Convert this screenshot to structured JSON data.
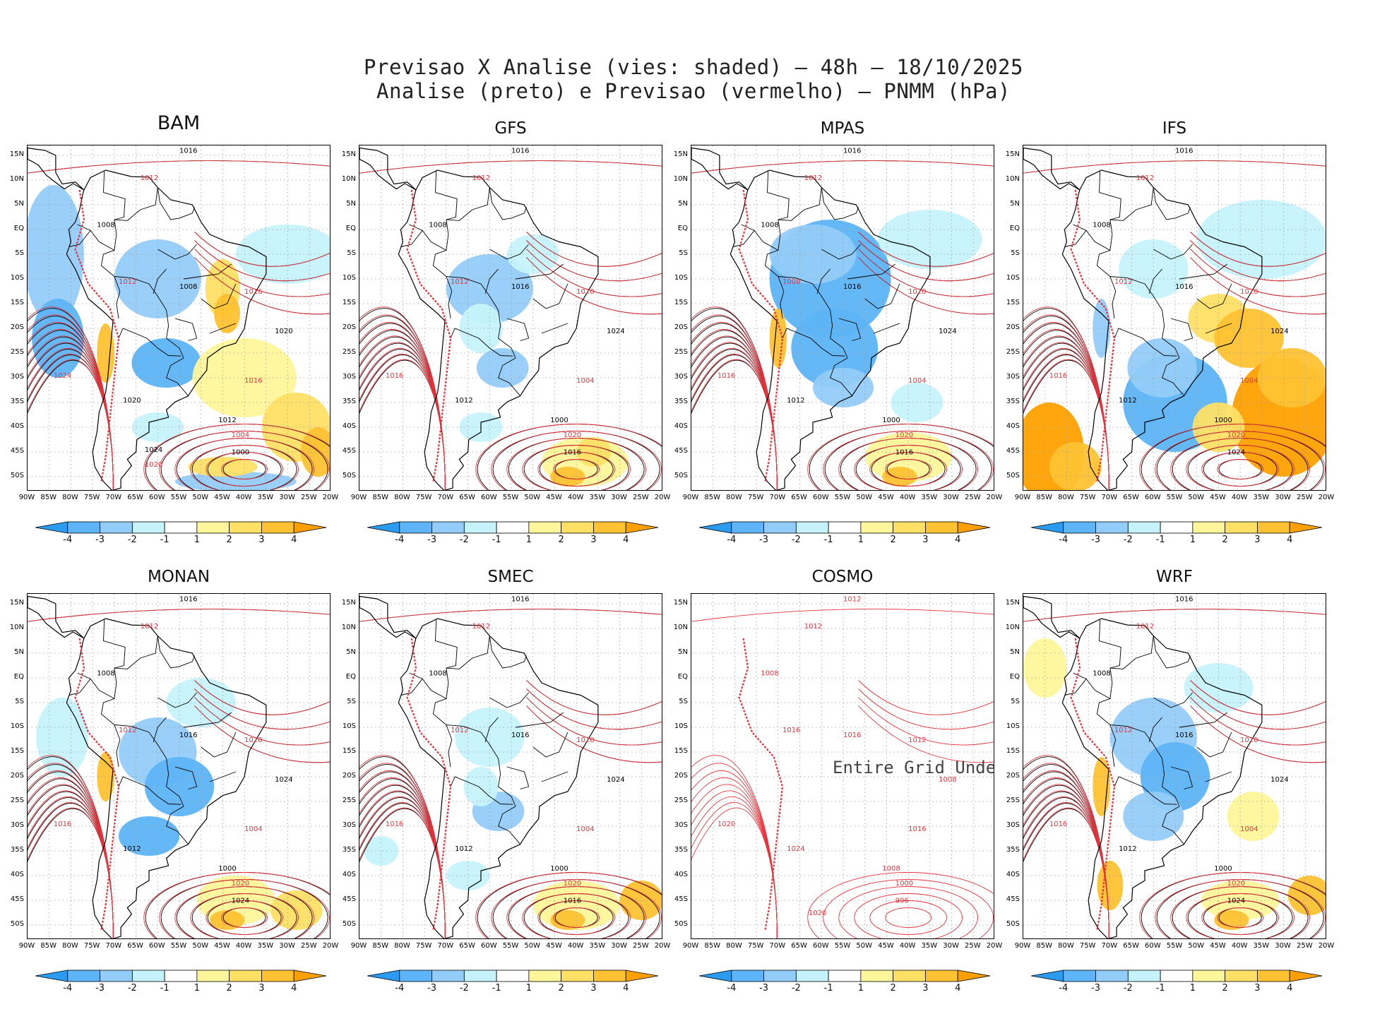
{
  "title": {
    "line1": "Previsao X Analise (vies: shaded) – 48h – 18/10/2025",
    "line2": "Analise (preto) e Previsao (vermelho) – PNMM (hPa)"
  },
  "axes": {
    "lat_labels": [
      "15N",
      "10N",
      "5N",
      "EQ",
      "5S",
      "10S",
      "15S",
      "20S",
      "25S",
      "30S",
      "35S",
      "40S",
      "45S",
      "50S"
    ],
    "lon_labels": [
      "90W",
      "85W",
      "80W",
      "75W",
      "70W",
      "65W",
      "60W",
      "55W",
      "50W",
      "45W",
      "40W",
      "35W",
      "30W",
      "25W",
      "20W"
    ]
  },
  "colorbar": {
    "labels": [
      "-4",
      "-3",
      "-2",
      "-1",
      "1",
      "2",
      "3",
      "4"
    ],
    "colors": [
      "#2b9bf0",
      "#5db4f6",
      "#93ccf8",
      "#c6f3fb",
      "#ffffff",
      "#fff59b",
      "#ffe066",
      "#ffc233",
      "#ffa000"
    ]
  },
  "colors": {
    "analysis_contour": "#000000",
    "forecast_contour": "#e8323c",
    "grid": "#9a9a9a"
  },
  "panels": [
    {
      "name": "BAM",
      "bias": "mixed",
      "labels": [
        "1016",
        "1012",
        "1008",
        "1012",
        "1008",
        "1016",
        "1020",
        "1024",
        "1020",
        "1016",
        "1012",
        "1004",
        "1000",
        "1020",
        "1024"
      ],
      "undefined_text": ""
    },
    {
      "name": "GFS",
      "bias": "weak",
      "labels": [
        "1016",
        "1012",
        "1008",
        "1012",
        "1016",
        "1020",
        "1024",
        "1016",
        "1012",
        "1004",
        "1000",
        "1020",
        "1016"
      ],
      "undefined_text": ""
    },
    {
      "name": "MPAS",
      "bias": "negative",
      "labels": [
        "1016",
        "1012",
        "1008",
        "1008",
        "1016",
        "1020",
        "1024",
        "1016",
        "1012",
        "1004",
        "1000",
        "1020",
        "1016"
      ],
      "undefined_text": ""
    },
    {
      "name": "IFS",
      "bias": "strong",
      "labels": [
        "1016",
        "1012",
        "1008",
        "1012",
        "1016",
        "1020",
        "1024",
        "1016",
        "1012",
        "1004",
        "1000",
        "1020",
        "1024"
      ],
      "undefined_text": ""
    },
    {
      "name": "MONAN",
      "bias": "mixed",
      "labels": [
        "1016",
        "1012",
        "1008",
        "1012",
        "1016",
        "1020",
        "1024",
        "1016",
        "1012",
        "1004",
        "1000",
        "1020",
        "1024"
      ],
      "undefined_text": ""
    },
    {
      "name": "SMEC",
      "bias": "weak",
      "labels": [
        "1016",
        "1012",
        "1008",
        "1012",
        "1016",
        "1020",
        "1024",
        "1016",
        "1012",
        "1004",
        "1000",
        "1020",
        "1016"
      ],
      "undefined_text": ""
    },
    {
      "name": "COSMO",
      "bias": "none",
      "labels": [
        "1012",
        "1012",
        "1008",
        "1016",
        "1016",
        "1012",
        "1008",
        "1020",
        "1024",
        "1016",
        "1008",
        "1000",
        "996",
        "1020"
      ],
      "undefined_text": "Entire Grid Undef"
    },
    {
      "name": "WRF",
      "bias": "mixed",
      "labels": [
        "1016",
        "1012",
        "1008",
        "1012",
        "1016",
        "1020",
        "1024",
        "1016",
        "1012",
        "1004",
        "1000",
        "1020",
        "1024"
      ],
      "undefined_text": ""
    }
  ]
}
